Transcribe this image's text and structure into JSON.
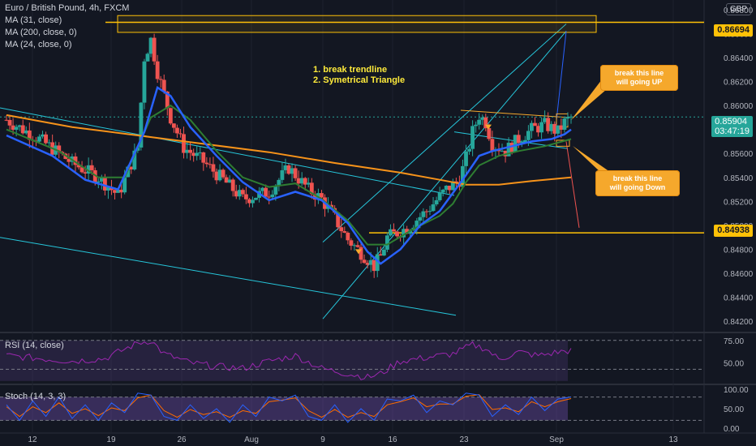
{
  "legend": {
    "symbol": "Euro / British Pound, 4h, FXCM",
    "ma1": "MA (31, close)",
    "ma2": "MA (200, close, 0)",
    "ma3": "MA (24, close, 0)"
  },
  "currency": "GBP",
  "notes": {
    "line1": "1. break trendline",
    "line2": "2. Symetrical Triangle"
  },
  "callouts": {
    "up_line1": "break this line",
    "up_line2": "will going UP",
    "down_line1": "break this line",
    "down_line2": "will going Down"
  },
  "price_tags": {
    "upper": "0.86694",
    "current": "0.85904",
    "countdown": "03:47:19",
    "lower": "0.84938"
  },
  "rsi_label": "RSI (14, close)",
  "stoch_label": "Stoch (14, 3, 3)",
  "colors": {
    "background": "#131722",
    "up_candle": "#26a69a",
    "down_candle": "#ef5350",
    "ma31": "#2962ff",
    "ma200": "#f7931a",
    "ma24": "#2e7d32",
    "level_line": "#ffc107",
    "channel": "#26c6da",
    "rsi": "#9c27b0",
    "stoch_k": "#2962ff",
    "stoch_d": "#ff6d00"
  },
  "chart_data": {
    "type": "candlestick",
    "title": "Euro / British Pound, 4h, FXCM",
    "y_ticks": [
      0.842,
      0.844,
      0.846,
      0.848,
      0.85,
      0.852,
      0.854,
      0.856,
      0.858,
      0.86,
      0.862,
      0.864,
      0.866,
      0.868
    ],
    "y_tick_labels": [
      "0.84200",
      "0.84400",
      "0.84600",
      "0.84800",
      "0.85000",
      "0.85200",
      "0.85400",
      "0.85600",
      "0.85800",
      "0.86000",
      "0.86200",
      "0.86400",
      "0.86600",
      "0.86800"
    ],
    "ylim": [
      0.8412,
      0.8688
    ],
    "x_labels": [
      "12",
      "19",
      "26",
      "Aug",
      "9",
      "16",
      "23",
      "Sep",
      "13"
    ],
    "key_prices": [
      {
        "name": "resistance",
        "value": 0.86694
      },
      {
        "name": "support",
        "value": 0.84938
      },
      {
        "name": "last",
        "value": 0.85904
      }
    ],
    "close_path": [
      [
        0,
        0.8588
      ],
      [
        5,
        0.8572
      ],
      [
        10,
        0.8552
      ],
      [
        14,
        0.854
      ],
      [
        17,
        0.8525
      ],
      [
        20,
        0.8565
      ],
      [
        21,
        0.864
      ],
      [
        22,
        0.8655
      ],
      [
        23,
        0.8628
      ],
      [
        25,
        0.859
      ],
      [
        27,
        0.8565
      ],
      [
        30,
        0.8553
      ],
      [
        33,
        0.8538
      ],
      [
        36,
        0.8522
      ],
      [
        40,
        0.8528
      ],
      [
        43,
        0.8548
      ],
      [
        46,
        0.853
      ],
      [
        48,
        0.8522
      ],
      [
        50,
        0.8506
      ],
      [
        52,
        0.8488
      ],
      [
        55,
        0.8472
      ],
      [
        56,
        0.8466
      ],
      [
        57,
        0.8474
      ],
      [
        58,
        0.849
      ],
      [
        61,
        0.8498
      ],
      [
        64,
        0.8512
      ],
      [
        67,
        0.853
      ],
      [
        69,
        0.8538
      ],
      [
        70,
        0.8556
      ],
      [
        71,
        0.8578
      ],
      [
        72,
        0.8592
      ],
      [
        73,
        0.8586
      ],
      [
        74,
        0.8568
      ],
      [
        76,
        0.8562
      ],
      [
        78,
        0.8572
      ],
      [
        80,
        0.858
      ],
      [
        82,
        0.8584
      ],
      [
        84,
        0.8578
      ],
      [
        85,
        0.8586
      ],
      [
        86,
        0.859
      ]
    ],
    "ma31_path": [
      [
        0,
        0.8575
      ],
      [
        7,
        0.8558
      ],
      [
        12,
        0.8538
      ],
      [
        17,
        0.853
      ],
      [
        21,
        0.8578
      ],
      [
        23,
        0.8615
      ],
      [
        25,
        0.8608
      ],
      [
        28,
        0.8582
      ],
      [
        32,
        0.8558
      ],
      [
        36,
        0.8536
      ],
      [
        40,
        0.8521
      ],
      [
        44,
        0.8528
      ],
      [
        48,
        0.8521
      ],
      [
        52,
        0.8502
      ],
      [
        55,
        0.8478
      ],
      [
        57,
        0.8468
      ],
      [
        60,
        0.848
      ],
      [
        63,
        0.85
      ],
      [
        66,
        0.8512
      ],
      [
        68,
        0.8527
      ],
      [
        70,
        0.8542
      ],
      [
        72,
        0.8558
      ],
      [
        74,
        0.8562
      ],
      [
        77,
        0.8566
      ],
      [
        80,
        0.857
      ],
      [
        83,
        0.8572
      ],
      [
        85,
        0.8576
      ],
      [
        86,
        0.858
      ]
    ],
    "ma24_path": [
      [
        0,
        0.858
      ],
      [
        8,
        0.8562
      ],
      [
        14,
        0.854
      ],
      [
        18,
        0.854
      ],
      [
        22,
        0.859
      ],
      [
        25,
        0.86
      ],
      [
        28,
        0.8588
      ],
      [
        32,
        0.8562
      ],
      [
        36,
        0.854
      ],
      [
        40,
        0.8532
      ],
      [
        44,
        0.8535
      ],
      [
        48,
        0.8522
      ],
      [
        52,
        0.8504
      ],
      [
        55,
        0.8484
      ],
      [
        58,
        0.8484
      ],
      [
        62,
        0.8497
      ],
      [
        66,
        0.8508
      ],
      [
        68,
        0.8518
      ],
      [
        70,
        0.8536
      ],
      [
        72,
        0.855
      ],
      [
        75,
        0.8558
      ],
      [
        78,
        0.8562
      ],
      [
        82,
        0.8566
      ],
      [
        86,
        0.8572
      ]
    ],
    "ma200_path": [
      [
        0,
        0.8592
      ],
      [
        10,
        0.8582
      ],
      [
        20,
        0.8575
      ],
      [
        30,
        0.8568
      ],
      [
        40,
        0.8561
      ],
      [
        50,
        0.8552
      ],
      [
        60,
        0.8544
      ],
      [
        66,
        0.8538
      ],
      [
        70,
        0.8534
      ],
      [
        75,
        0.8534
      ],
      [
        80,
        0.8537
      ],
      [
        86,
        0.854
      ]
    ],
    "rsi": {
      "y_ticks": [
        50,
        75
      ],
      "y_tick_labels": [
        "50.00",
        "75.00"
      ],
      "ylim": [
        28,
        82
      ],
      "bands": [
        30,
        70
      ],
      "path": [
        [
          0,
          58
        ],
        [
          5,
          55
        ],
        [
          10,
          52
        ],
        [
          15,
          55
        ],
        [
          20,
          72
        ],
        [
          22,
          75
        ],
        [
          24,
          60
        ],
        [
          28,
          50
        ],
        [
          32,
          46
        ],
        [
          36,
          44
        ],
        [
          40,
          52
        ],
        [
          44,
          58
        ],
        [
          48,
          44
        ],
        [
          52,
          38
        ],
        [
          55,
          34
        ],
        [
          57,
          38
        ],
        [
          60,
          52
        ],
        [
          64,
          56
        ],
        [
          68,
          60
        ],
        [
          71,
          70
        ],
        [
          73,
          66
        ],
        [
          75,
          54
        ],
        [
          78,
          62
        ],
        [
          81,
          58
        ],
        [
          84,
          62
        ],
        [
          86,
          64
        ]
      ]
    },
    "stoch": {
      "y_ticks": [
        0,
        50,
        100
      ],
      "y_tick_labels": [
        "0.00",
        "50.00",
        "100.00"
      ],
      "ylim": [
        0,
        100
      ],
      "bands": [
        20,
        80
      ],
      "k_path": [
        [
          0,
          60
        ],
        [
          2,
          20
        ],
        [
          4,
          70
        ],
        [
          6,
          30
        ],
        [
          8,
          80
        ],
        [
          10,
          25
        ],
        [
          12,
          60
        ],
        [
          14,
          20
        ],
        [
          16,
          65
        ],
        [
          18,
          40
        ],
        [
          20,
          90
        ],
        [
          22,
          85
        ],
        [
          24,
          30
        ],
        [
          26,
          20
        ],
        [
          28,
          60
        ],
        [
          30,
          25
        ],
        [
          32,
          50
        ],
        [
          34,
          15
        ],
        [
          36,
          60
        ],
        [
          38,
          30
        ],
        [
          40,
          80
        ],
        [
          42,
          70
        ],
        [
          44,
          85
        ],
        [
          46,
          30
        ],
        [
          48,
          20
        ],
        [
          50,
          60
        ],
        [
          52,
          15
        ],
        [
          54,
          50
        ],
        [
          56,
          20
        ],
        [
          58,
          75
        ],
        [
          60,
          70
        ],
        [
          62,
          85
        ],
        [
          64,
          40
        ],
        [
          66,
          70
        ],
        [
          68,
          60
        ],
        [
          70,
          90
        ],
        [
          72,
          85
        ],
        [
          74,
          30
        ],
        [
          76,
          60
        ],
        [
          78,
          35
        ],
        [
          80,
          80
        ],
        [
          82,
          45
        ],
        [
          84,
          75
        ],
        [
          86,
          80
        ]
      ],
      "d_path": [
        [
          0,
          55
        ],
        [
          2,
          30
        ],
        [
          4,
          55
        ],
        [
          6,
          40
        ],
        [
          8,
          65
        ],
        [
          10,
          38
        ],
        [
          12,
          50
        ],
        [
          14,
          32
        ],
        [
          16,
          52
        ],
        [
          18,
          45
        ],
        [
          20,
          78
        ],
        [
          22,
          85
        ],
        [
          24,
          45
        ],
        [
          26,
          28
        ],
        [
          28,
          48
        ],
        [
          30,
          35
        ],
        [
          32,
          42
        ],
        [
          34,
          28
        ],
        [
          36,
          45
        ],
        [
          38,
          38
        ],
        [
          40,
          68
        ],
        [
          42,
          72
        ],
        [
          44,
          78
        ],
        [
          46,
          45
        ],
        [
          48,
          28
        ],
        [
          50,
          48
        ],
        [
          52,
          28
        ],
        [
          54,
          40
        ],
        [
          56,
          30
        ],
        [
          58,
          60
        ],
        [
          60,
          68
        ],
        [
          62,
          78
        ],
        [
          64,
          55
        ],
        [
          66,
          62
        ],
        [
          68,
          62
        ],
        [
          70,
          82
        ],
        [
          72,
          86
        ],
        [
          74,
          48
        ],
        [
          76,
          52
        ],
        [
          78,
          42
        ],
        [
          80,
          68
        ],
        [
          82,
          55
        ],
        [
          84,
          68
        ],
        [
          86,
          76
        ]
      ]
    }
  }
}
